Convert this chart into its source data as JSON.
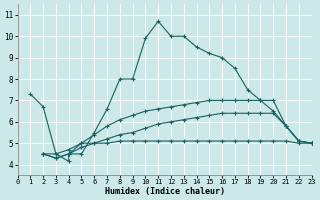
{
  "xlabel": "Humidex (Indice chaleur)",
  "bg_color": "#cce8e8",
  "grid_color": "#b0d4d4",
  "line_color": "#1a6060",
  "xlim": [
    0,
    23
  ],
  "ylim": [
    3.5,
    11.5
  ],
  "xticks": [
    0,
    1,
    2,
    3,
    4,
    5,
    6,
    7,
    8,
    9,
    10,
    11,
    12,
    13,
    14,
    15,
    16,
    17,
    18,
    19,
    20,
    21,
    22,
    23
  ],
  "yticks": [
    4,
    5,
    6,
    7,
    8,
    9,
    10,
    11
  ],
  "lines": [
    {
      "x": [
        1,
        2,
        3,
        4,
        4,
        5,
        6,
        7,
        8,
        9,
        10,
        11,
        12,
        13,
        14,
        15,
        16,
        17,
        18,
        19,
        20,
        21,
        22,
        23
      ],
      "y": [
        7.3,
        6.7,
        4.5,
        4.15,
        4.5,
        4.5,
        5.5,
        6.6,
        8.0,
        8.0,
        9.9,
        10.7,
        10.0,
        10.0,
        9.5,
        9.2,
        9.0,
        8.5,
        7.5,
        7.0,
        6.5,
        5.8,
        5.1,
        5.0
      ]
    },
    {
      "x": [
        2,
        3,
        4,
        5,
        6,
        7,
        8,
        9,
        10,
        11,
        12,
        13,
        14,
        15,
        16,
        17,
        18,
        19,
        20,
        21,
        22,
        23
      ],
      "y": [
        4.5,
        4.3,
        4.5,
        5.0,
        5.4,
        5.8,
        6.1,
        6.3,
        6.5,
        6.6,
        6.7,
        6.8,
        6.9,
        7.0,
        7.0,
        7.0,
        7.0,
        7.0,
        7.0,
        5.8,
        5.1,
        5.0
      ]
    },
    {
      "x": [
        2,
        3,
        4,
        5,
        6,
        7,
        8,
        9,
        10,
        11,
        12,
        13,
        14,
        15,
        16,
        17,
        18,
        19,
        20,
        21,
        22,
        23
      ],
      "y": [
        4.5,
        4.3,
        4.5,
        4.8,
        5.0,
        5.2,
        5.4,
        5.5,
        5.7,
        5.9,
        6.0,
        6.1,
        6.2,
        6.3,
        6.4,
        6.4,
        6.4,
        6.4,
        6.4,
        5.8,
        5.1,
        5.0
      ]
    },
    {
      "x": [
        2,
        3,
        4,
        5,
        6,
        7,
        8,
        9,
        10,
        11,
        12,
        13,
        14,
        15,
        16,
        17,
        18,
        19,
        20,
        21,
        22,
        23
      ],
      "y": [
        4.5,
        4.5,
        4.7,
        5.0,
        5.0,
        5.0,
        5.1,
        5.1,
        5.1,
        5.1,
        5.1,
        5.1,
        5.1,
        5.1,
        5.1,
        5.1,
        5.1,
        5.1,
        5.1,
        5.1,
        5.0,
        5.0
      ]
    }
  ]
}
